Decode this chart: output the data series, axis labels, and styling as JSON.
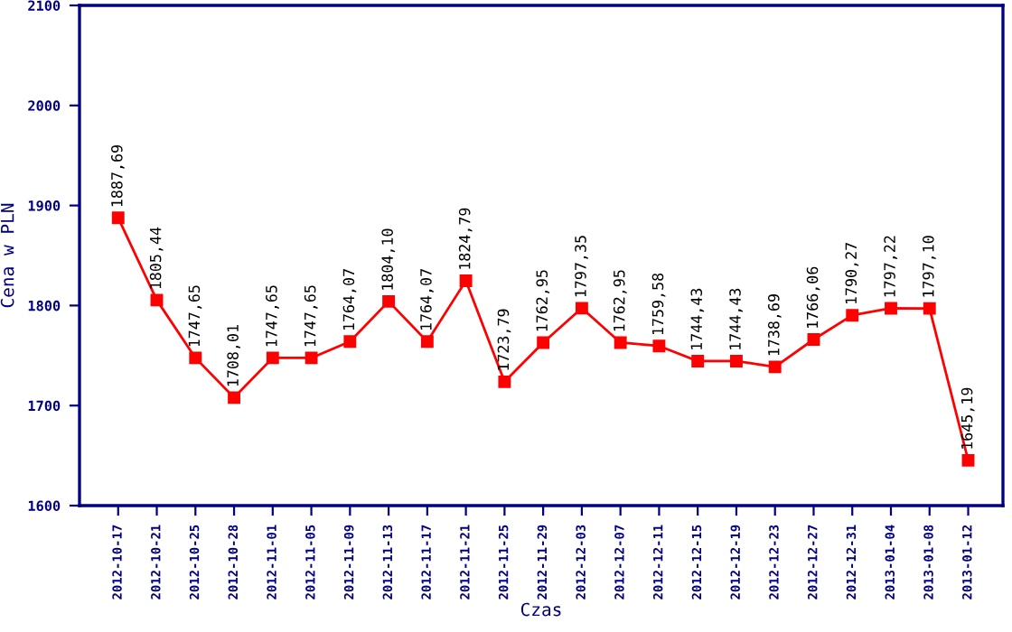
{
  "chart_data": {
    "type": "line",
    "xlabel": "Czas",
    "ylabel": "Cena w PLN",
    "categories": [
      "2012-10-17",
      "2012-10-21",
      "2012-10-25",
      "2012-10-28",
      "2012-11-01",
      "2012-11-05",
      "2012-11-09",
      "2012-11-13",
      "2012-11-17",
      "2012-11-21",
      "2012-11-25",
      "2012-11-29",
      "2012-12-03",
      "2012-12-07",
      "2012-12-11",
      "2012-12-15",
      "2012-12-19",
      "2012-12-23",
      "2012-12-27",
      "2012-12-31",
      "2013-01-04",
      "2013-01-08",
      "2013-01-12"
    ],
    "series": [
      {
        "color": "#ff0000",
        "values": [
          1887.69,
          1805.44,
          1747.65,
          1708.01,
          1747.65,
          1747.65,
          1764.07,
          1804.1,
          1764.07,
          1824.79,
          1723.79,
          1762.95,
          1797.35,
          1762.95,
          1759.58,
          1744.43,
          1744.43,
          1738.69,
          1766.06,
          1790.27,
          1797.22,
          1797.1,
          1645.19
        ],
        "value_labels": [
          "1887,69",
          "1805,44",
          "1747,65",
          "1708,01",
          "1747,65",
          "1747,65",
          "1764,07",
          "1804,10",
          "1764,07",
          "1824,79",
          "1723,79",
          "1762,95",
          "1797,35",
          "1762,95",
          "1759,58",
          "1744,43",
          "1744,43",
          "1738,69",
          "1766,06",
          "1790,27",
          "1797,22",
          "1797,10",
          "1645,19"
        ]
      }
    ],
    "ylim": [
      1600,
      2100
    ],
    "yticks": [
      1600,
      1700,
      1800,
      1900,
      2000,
      2100
    ],
    "marker": "square",
    "line_style": "solid",
    "grid": false,
    "legend": false
  }
}
